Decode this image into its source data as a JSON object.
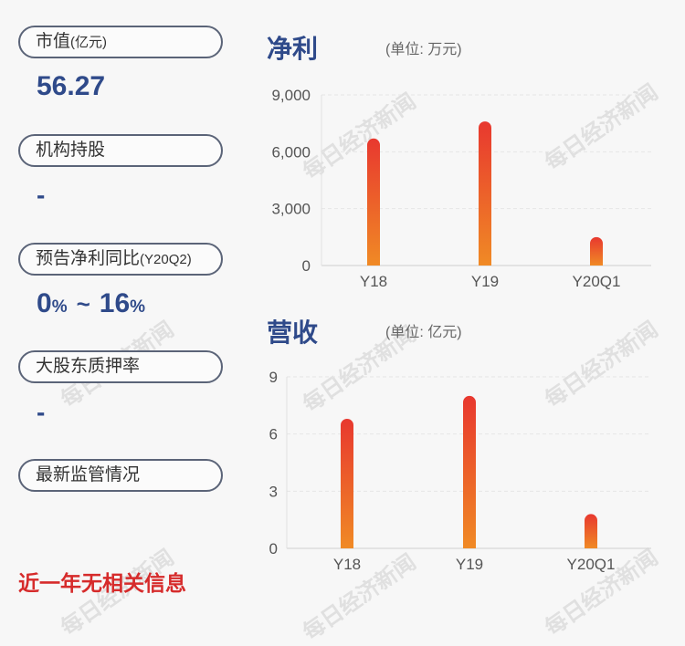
{
  "left_panel": {
    "market_cap_label": "市值",
    "market_cap_unit": "(亿元)",
    "market_cap_value": "56.27",
    "institutional_label": "机构持股",
    "institutional_value": "-",
    "forecast_label": "预告净利同比",
    "forecast_period": "(Y20Q2)",
    "forecast_low": "0",
    "forecast_high": "16",
    "pct_symbol": "%",
    "tilde": "~",
    "pledge_label": "大股东质押率",
    "pledge_value": "-",
    "regulation_label": "最新监管情况",
    "regulation_note": "近一年无相关信息"
  },
  "watermark": "每日经济新闻",
  "chart_data": [
    {
      "type": "bar",
      "title": "净利",
      "unit_label": "(单位: 万元)",
      "categories": [
        "Y18",
        "Y19",
        "Y20Q1"
      ],
      "values": [
        6700,
        7600,
        1500
      ],
      "ylim": [
        0,
        9000
      ],
      "yticks": [
        0,
        3000,
        6000,
        9000
      ],
      "ytick_labels": [
        "0",
        "3,000",
        "6,000",
        "9,000"
      ],
      "grid": true,
      "bar_colors": [
        "#e8382f",
        "#f08a25"
      ]
    },
    {
      "type": "bar",
      "title": "营收",
      "unit_label": "(单位: 亿元)",
      "categories": [
        "Y18",
        "Y19",
        "Y20Q1"
      ],
      "values": [
        6.8,
        8.0,
        1.8
      ],
      "ylim": [
        0,
        9
      ],
      "yticks": [
        0,
        3,
        6,
        9
      ],
      "ytick_labels": [
        "0",
        "3",
        "6",
        "9"
      ],
      "grid": true,
      "bar_colors": [
        "#e8382f",
        "#f08a25"
      ]
    }
  ]
}
